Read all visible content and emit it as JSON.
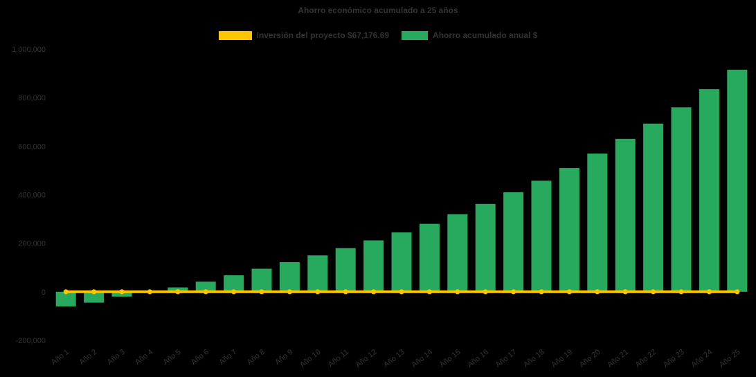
{
  "chart_data": {
    "type": "bar",
    "title": "Ahorro económico acumulado a 25 años",
    "categories": [
      "Año 1",
      "Año 2",
      "Año 3",
      "Año 4",
      "Año 5",
      "Año 6",
      "Año 7",
      "Año 8",
      "Año 9",
      "Año 10",
      "Año 11",
      "Año 12",
      "Año 13",
      "Año 14",
      "Año 15",
      "Año 16",
      "Año 17",
      "Año 18",
      "Año 19",
      "Año 20",
      "Año 21",
      "Año 22",
      "Año 23",
      "Año 24",
      "Año 25"
    ],
    "series": [
      {
        "name": "Inversión del proyecto $67,176.69",
        "type": "line",
        "color": "#fdc500",
        "constant_value": 0,
        "investment_amount": "$67,176.69"
      },
      {
        "name": "Ahorro acumulado anual $",
        "type": "bar",
        "color": "#27a95e",
        "values": [
          -60000,
          -45000,
          -20000,
          3000,
          18000,
          42000,
          68000,
          95000,
          122000,
          150000,
          180000,
          212000,
          245000,
          280000,
          320000,
          362000,
          410000,
          458000,
          510000,
          570000,
          630000,
          693000,
          760000,
          835000,
          915000
        ]
      }
    ],
    "ylim": [
      -200000,
      1000000
    ],
    "yticks": [
      1000000,
      800000,
      600000,
      400000,
      200000,
      0,
      -200000
    ],
    "xlabel": "",
    "ylabel": "",
    "grid": false,
    "legend_position": "top",
    "background_color": "#000000",
    "text_color": "#333333"
  }
}
